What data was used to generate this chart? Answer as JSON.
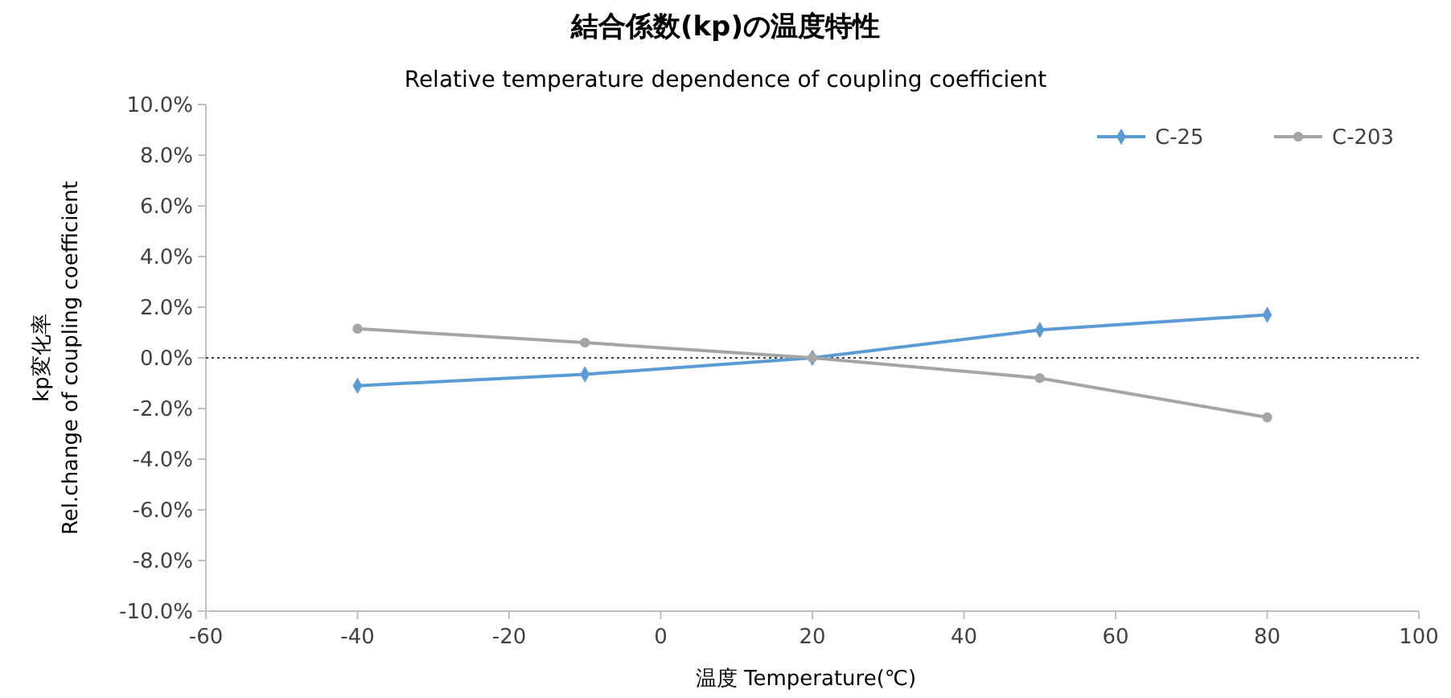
{
  "chart_data": {
    "type": "line",
    "title": "結合係数(kp)の温度特性",
    "subtitle": "Relative temperature dependence of coupling coefficient",
    "xlabel": "温度 Temperature(℃)",
    "ylabel": "kp変化率\nRel.change of coupling coefficient",
    "x": [
      -40,
      -10,
      20,
      50,
      80
    ],
    "series": [
      {
        "name": "C-25",
        "color": "#5b9bd5",
        "marker": "diamond",
        "values": [
          -1.1,
          -0.65,
          0,
          1.1,
          1.7
        ]
      },
      {
        "name": "C-203",
        "color": "#a5a5a5",
        "marker": "circle",
        "values": [
          1.15,
          0.6,
          0,
          -0.8,
          -2.35
        ]
      }
    ],
    "xlim": [
      -60,
      100
    ],
    "xticks": [
      -60,
      -40,
      -20,
      0,
      20,
      40,
      60,
      80,
      100
    ],
    "ylim": [
      -10,
      10
    ],
    "yticks": [
      {
        "value": -10,
        "label": "-10.0%"
      },
      {
        "value": -8,
        "label": "-8.0%"
      },
      {
        "value": -6,
        "label": "-6.0%"
      },
      {
        "value": -4,
        "label": "-4.0%"
      },
      {
        "value": -2,
        "label": "-2.0%"
      },
      {
        "value": 0,
        "label": "0.0%"
      },
      {
        "value": 2,
        "label": "2.0%"
      },
      {
        "value": 4,
        "label": "4.0%"
      },
      {
        "value": 6,
        "label": "6.0%"
      },
      {
        "value": 8,
        "label": "8.0%"
      },
      {
        "value": 10,
        "label": "10.0%"
      }
    ],
    "ref_lines": [
      {
        "axis": "y",
        "value": 0,
        "color": "#404040",
        "line_style": "dotted"
      }
    ],
    "grid": false,
    "legend": "top right",
    "line_style": "solid"
  }
}
